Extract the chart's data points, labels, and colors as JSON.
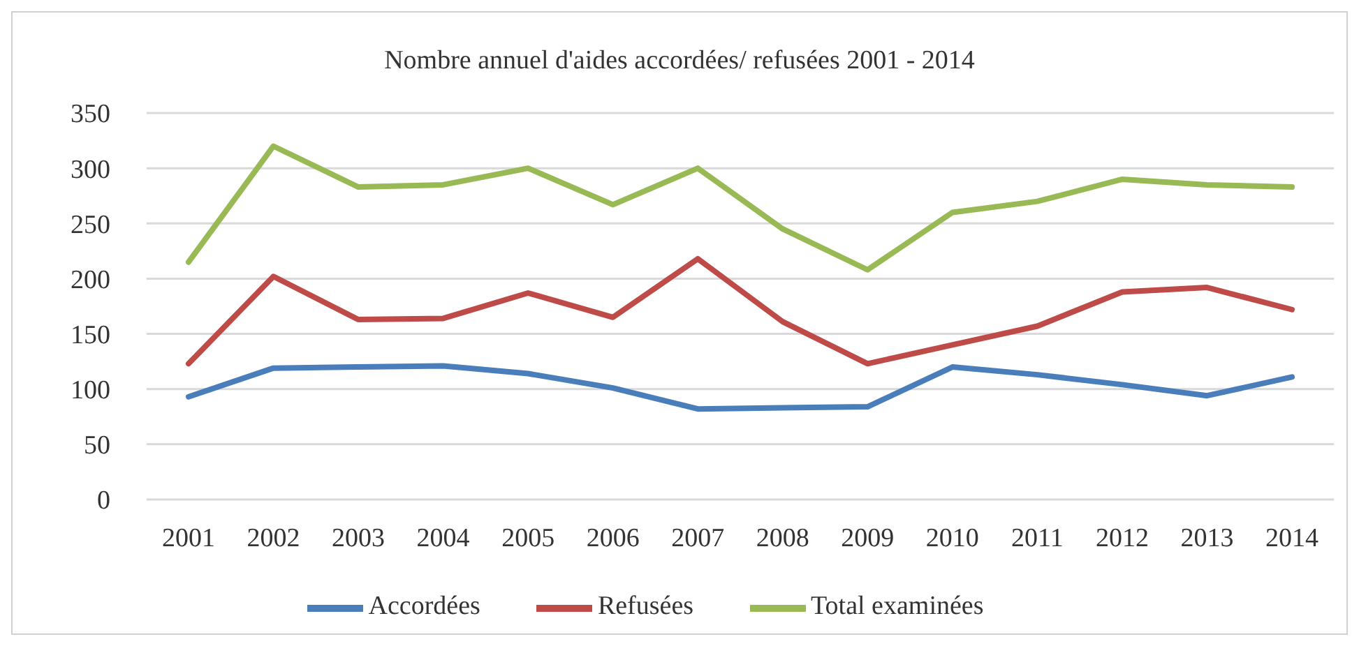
{
  "chart_data": {
    "type": "line",
    "title": "Nombre annuel d'aides accordées/ refusées 2001 - 2014",
    "categories": [
      "2001",
      "2002",
      "2003",
      "2004",
      "2005",
      "2006",
      "2007",
      "2008",
      "2009",
      "2010",
      "2011",
      "2012",
      "2013",
      "2014"
    ],
    "series": [
      {
        "name": "Accordées",
        "color": "#4a7ebb",
        "values": [
          93,
          119,
          120,
          121,
          114,
          101,
          82,
          83,
          84,
          120,
          113,
          104,
          94,
          111
        ]
      },
      {
        "name": "Refusées",
        "color": "#be4b48",
        "values": [
          123,
          202,
          163,
          164,
          187,
          165,
          218,
          161,
          123,
          140,
          157,
          188,
          192,
          172
        ]
      },
      {
        "name": "Total examinées",
        "color": "#98b954",
        "values": [
          215,
          320,
          283,
          285,
          300,
          267,
          300,
          245,
          208,
          260,
          270,
          290,
          285,
          283
        ]
      }
    ],
    "ylim": [
      0,
      350
    ],
    "yticks": [
      0,
      50,
      100,
      150,
      200,
      250,
      300,
      350
    ],
    "grid": "y",
    "legend": "bottom",
    "marker": "none",
    "line_style": "solid"
  }
}
